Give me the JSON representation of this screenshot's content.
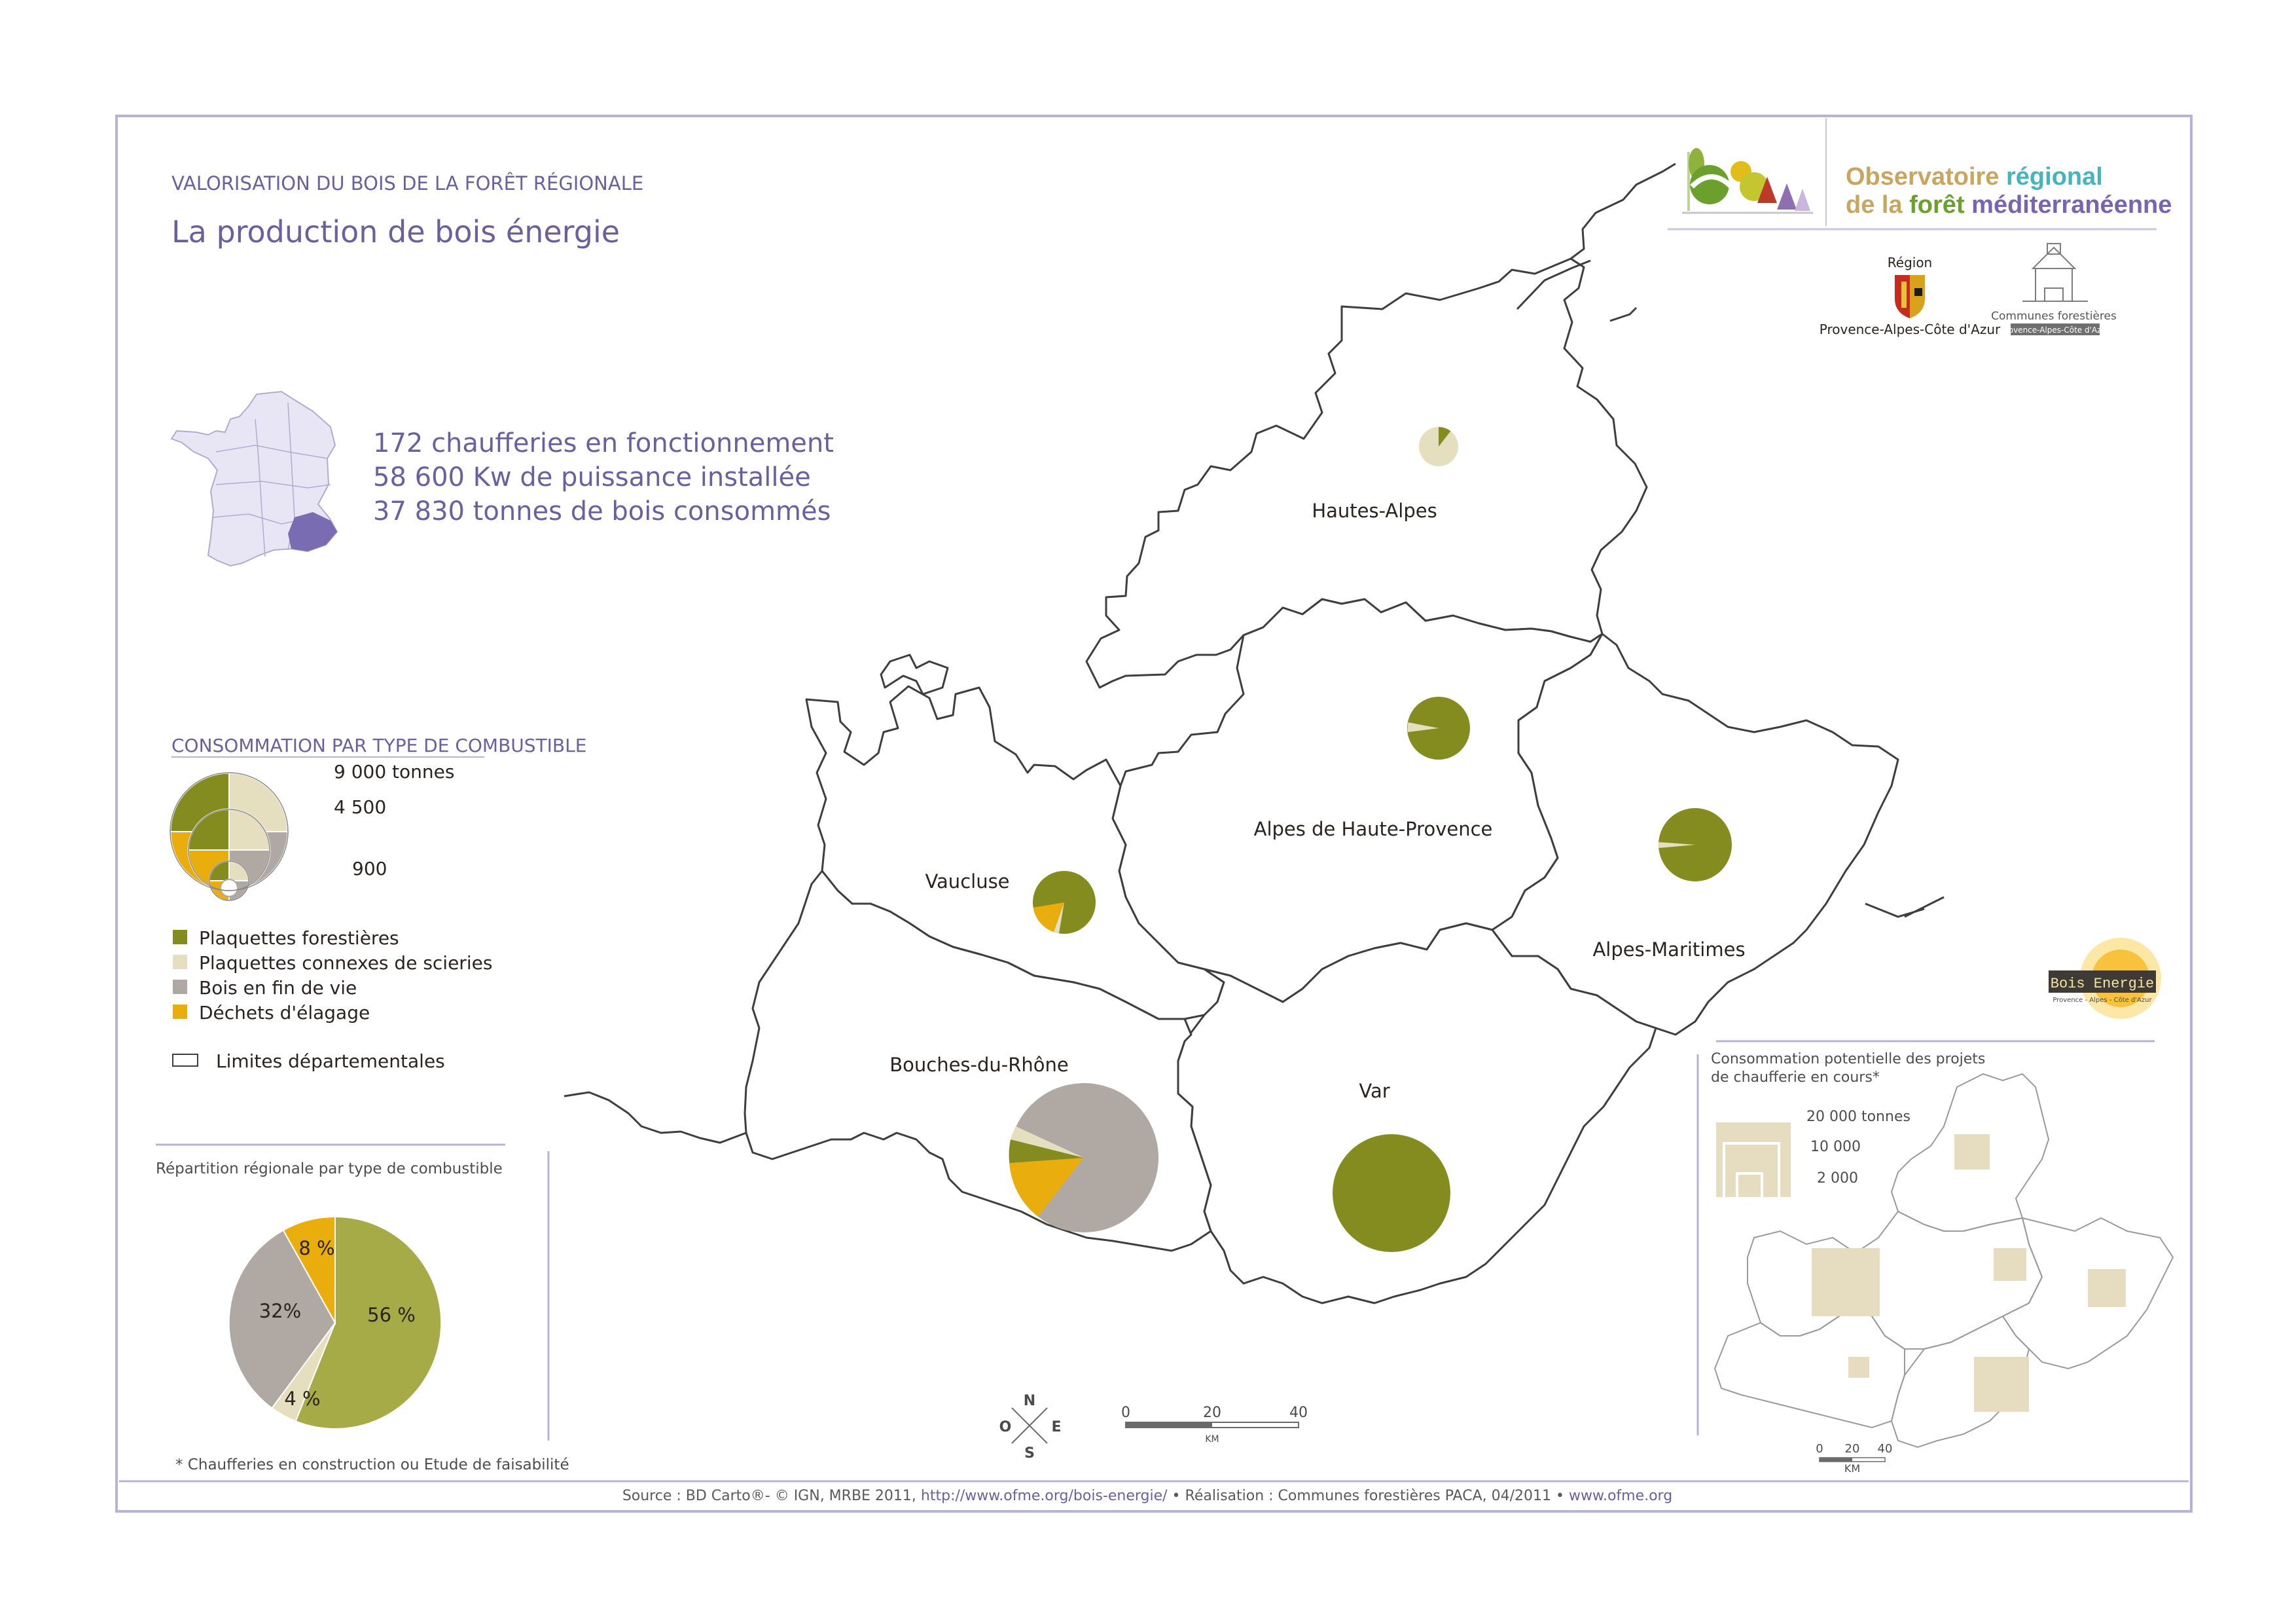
{
  "colors": {
    "frame": "#b6b3d6",
    "title_violet": "#6b5fa0",
    "plaquettes_forestieres": "#858c1f",
    "plaquettes_connexes": "#e6dfbf",
    "bois_fin_de_vie": "#b0a8a2",
    "dechets_elagage": "#eaad0e",
    "bar_pie_forest": "#a6ab47",
    "square_fill": "#e6dcc0",
    "boundary": "#3e3e3e",
    "link": "#6b5fa0"
  },
  "header": {
    "kicker": "VALORISATION DU BOIS DE LA FORÊT RÉGIONALE",
    "title": "La production de bois énergie"
  },
  "stats": [
    "172 chaufferies en fonctionnement",
    "58 600 Kw de puissance installée",
    "37 830 tonnes de bois consommés"
  ],
  "logos": {
    "ofme_line1a": "Observatoire ",
    "ofme_line1b": "régional",
    "ofme_line2a": "de la ",
    "ofme_line2b": "forêt ",
    "ofme_line2c": "méditerranéenne",
    "region_top": "Région",
    "region_bottom": "Provence-Alpes-Côte d'Azur",
    "communes_line1": "Communes forestières",
    "communes_line2": "Provence-Alpes-Côte d'Azur",
    "bois_energie": "Bois Energie",
    "bois_energie_sub": "Provence - Alpes - Côte d'Azur"
  },
  "legend": {
    "title": "CONSOMMATION PAR TYPE DE COMBUSTIBLE",
    "scale_labels": [
      "9 000 tonnes",
      "4 500",
      "900"
    ],
    "items": [
      {
        "label": "Plaquettes forestières",
        "color": "#858c1f"
      },
      {
        "label": "Plaquettes connexes de scieries",
        "color": "#e6dfbf"
      },
      {
        "label": "Bois en fin de vie",
        "color": "#b0a8a2"
      },
      {
        "label": "Déchets d'élagage",
        "color": "#eaad0e"
      }
    ],
    "limits_label": "Limites départementales"
  },
  "departments": [
    {
      "name": "Hautes-Alpes"
    },
    {
      "name": "Alpes de Haute-Provence"
    },
    {
      "name": "Vaucluse"
    },
    {
      "name": "Alpes-Maritimes"
    },
    {
      "name": "Bouches-du-Rhône"
    },
    {
      "name": "Var"
    }
  ],
  "regional_pie": {
    "title": "Répartition régionale par type de combustible",
    "slices": [
      {
        "label": "56 %",
        "value": 56,
        "color": "#a6ab47"
      },
      {
        "label": "4 %",
        "value": 4,
        "color": "#e6dfbf"
      },
      {
        "label": "32%",
        "value": 32,
        "color": "#b0a8a2"
      },
      {
        "label": "8 %",
        "value": 8,
        "color": "#eaad0e"
      }
    ]
  },
  "footnote": "* Chaufferies en construction ou Etude de faisabilité",
  "inset": {
    "title_line1": "Consommation potentielle des projets",
    "title_line2": "de chaufferie en cours*",
    "scale_labels": [
      "20 000 tonnes",
      "10 000",
      "2 000"
    ],
    "scalebar": [
      "0",
      "20",
      "40"
    ],
    "scalebar_unit": "KM"
  },
  "scalebar": {
    "ticks": [
      "0",
      "20",
      "40"
    ],
    "unit": "KM"
  },
  "compass": {
    "n": "N",
    "s": "S",
    "e": "E",
    "w": "O"
  },
  "source": {
    "prefix": "Source : BD Carto®- © IGN,  MRBE 2011, ",
    "link1": "http://www.ofme.org/bois-energie/",
    "middle": " • Réalisation : Communes forestières PACA, 04/2011 • ",
    "link2": "www.ofme.org"
  }
}
